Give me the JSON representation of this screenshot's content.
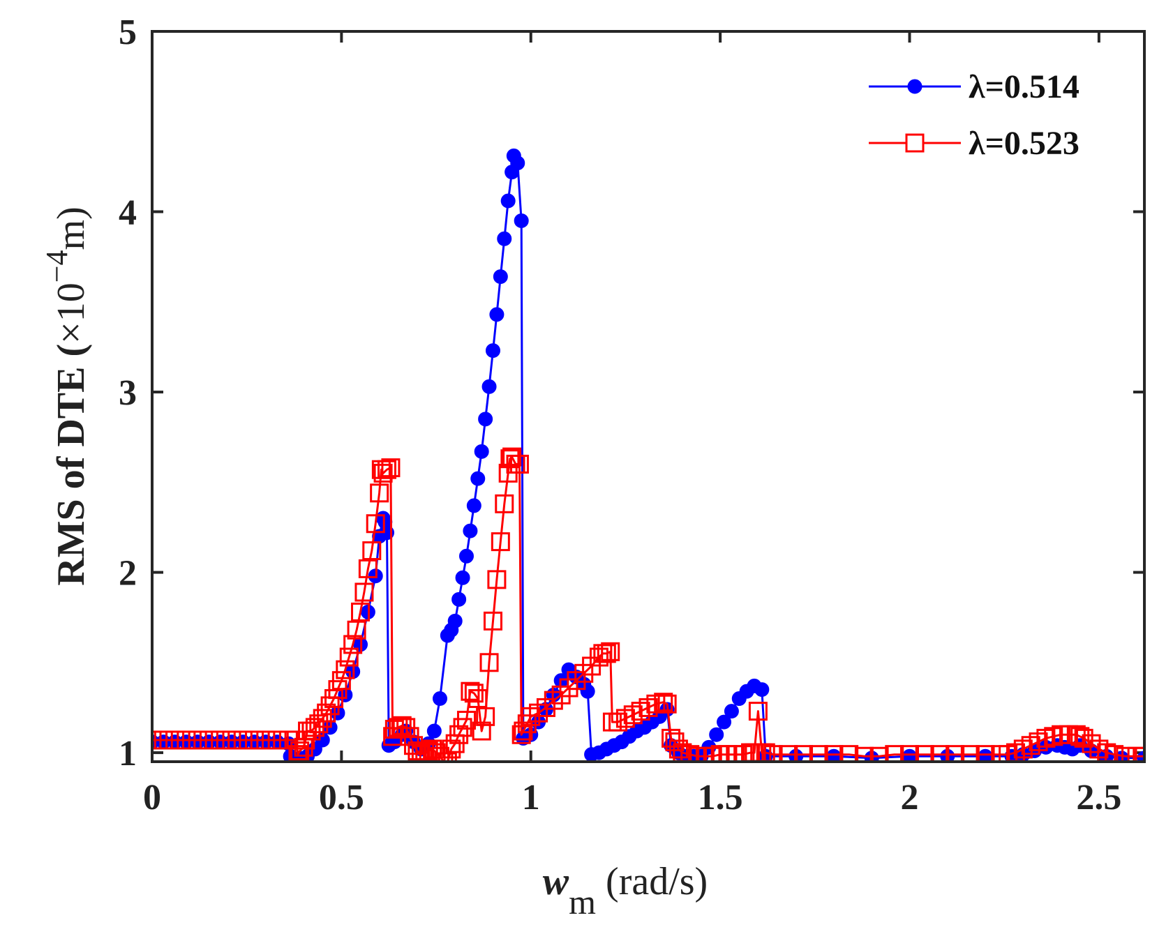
{
  "chart_data": {
    "type": "line",
    "title": "",
    "xlabel": {
      "symbol": "w",
      "subscript": "m",
      "unit": " (rad/s)"
    },
    "ylabel": {
      "main": "RMS of DTE (",
      "times": "×",
      "base": "10",
      "exponent": "−4",
      "unit": "m)"
    },
    "xlim": [
      0,
      2.62
    ],
    "ylim": [
      0.95,
      5
    ],
    "xticks": [
      0,
      0.5,
      1,
      1.5,
      2,
      2.5
    ],
    "xtick_labels": [
      "0",
      "0.5",
      "1",
      "1.5",
      "2",
      "2.5"
    ],
    "yticks": [
      1,
      2,
      3,
      4,
      5
    ],
    "ytick_labels": [
      "1",
      "2",
      "3",
      "4",
      "5"
    ],
    "grid": false,
    "legend_position": "top-right",
    "series": [
      {
        "name": "λ=0.514",
        "color": "#0000ff",
        "marker": "filled-circle",
        "points": [
          [
            0.0,
            1.06
          ],
          [
            0.03,
            1.06
          ],
          [
            0.06,
            1.06
          ],
          [
            0.09,
            1.06
          ],
          [
            0.12,
            1.06
          ],
          [
            0.15,
            1.06
          ],
          [
            0.18,
            1.06
          ],
          [
            0.21,
            1.06
          ],
          [
            0.24,
            1.06
          ],
          [
            0.27,
            1.06
          ],
          [
            0.3,
            1.06
          ],
          [
            0.33,
            1.06
          ],
          [
            0.36,
            1.05
          ],
          [
            0.365,
            0.98
          ],
          [
            0.39,
            0.97
          ],
          [
            0.41,
            0.98
          ],
          [
            0.43,
            1.02
          ],
          [
            0.45,
            1.07
          ],
          [
            0.47,
            1.14
          ],
          [
            0.49,
            1.22
          ],
          [
            0.51,
            1.32
          ],
          [
            0.53,
            1.45
          ],
          [
            0.55,
            1.6
          ],
          [
            0.57,
            1.78
          ],
          [
            0.59,
            1.98
          ],
          [
            0.6,
            2.2
          ],
          [
            0.61,
            2.3
          ],
          [
            0.615,
            2.28
          ],
          [
            0.62,
            2.22
          ],
          [
            0.625,
            1.04
          ],
          [
            0.64,
            1.06
          ],
          [
            0.66,
            1.1
          ],
          [
            0.67,
            1.12
          ],
          [
            0.69,
            1.06
          ],
          [
            0.71,
            1.02
          ],
          [
            0.73,
            1.05
          ],
          [
            0.745,
            1.12
          ],
          [
            0.76,
            1.3
          ],
          [
            0.78,
            1.65
          ],
          [
            0.79,
            1.68
          ],
          [
            0.8,
            1.73
          ],
          [
            0.81,
            1.85
          ],
          [
            0.82,
            1.97
          ],
          [
            0.83,
            2.09
          ],
          [
            0.84,
            2.23
          ],
          [
            0.85,
            2.37
          ],
          [
            0.86,
            2.52
          ],
          [
            0.87,
            2.67
          ],
          [
            0.88,
            2.85
          ],
          [
            0.89,
            3.03
          ],
          [
            0.9,
            3.23
          ],
          [
            0.91,
            3.43
          ],
          [
            0.92,
            3.64
          ],
          [
            0.93,
            3.85
          ],
          [
            0.94,
            4.06
          ],
          [
            0.95,
            4.22
          ],
          [
            0.955,
            4.31
          ],
          [
            0.965,
            4.27
          ],
          [
            0.975,
            3.95
          ],
          [
            0.98,
            1.08
          ],
          [
            1.0,
            1.1
          ],
          [
            1.02,
            1.17
          ],
          [
            1.04,
            1.24
          ],
          [
            1.06,
            1.32
          ],
          [
            1.08,
            1.4
          ],
          [
            1.1,
            1.46
          ],
          [
            1.12,
            1.42
          ],
          [
            1.14,
            1.38
          ],
          [
            1.15,
            1.34
          ],
          [
            1.16,
            0.99
          ],
          [
            1.18,
            1.0
          ],
          [
            1.2,
            1.02
          ],
          [
            1.22,
            1.04
          ],
          [
            1.24,
            1.06
          ],
          [
            1.26,
            1.09
          ],
          [
            1.28,
            1.12
          ],
          [
            1.3,
            1.14
          ],
          [
            1.32,
            1.17
          ],
          [
            1.34,
            1.2
          ],
          [
            1.36,
            1.24
          ],
          [
            1.37,
            1.04
          ],
          [
            1.39,
            1.0
          ],
          [
            1.41,
            0.98
          ],
          [
            1.43,
            0.98
          ],
          [
            1.45,
            0.98
          ],
          [
            1.47,
            1.03
          ],
          [
            1.49,
            1.1
          ],
          [
            1.51,
            1.17
          ],
          [
            1.53,
            1.23
          ],
          [
            1.55,
            1.3
          ],
          [
            1.57,
            1.34
          ],
          [
            1.59,
            1.37
          ],
          [
            1.61,
            1.35
          ],
          [
            1.62,
            0.98
          ],
          [
            1.7,
            0.98
          ],
          [
            1.8,
            0.98
          ],
          [
            1.9,
            0.97
          ],
          [
            2.0,
            0.98
          ],
          [
            2.1,
            0.98
          ],
          [
            2.2,
            0.98
          ],
          [
            2.27,
            0.98
          ],
          [
            2.3,
            0.99
          ],
          [
            2.33,
            1.01
          ],
          [
            2.36,
            1.03
          ],
          [
            2.39,
            1.04
          ],
          [
            2.41,
            1.03
          ],
          [
            2.43,
            1.02
          ],
          [
            2.45,
            1.04
          ],
          [
            2.48,
            1.01
          ],
          [
            2.52,
            0.98
          ],
          [
            2.56,
            0.97
          ],
          [
            2.62,
            0.97
          ]
        ]
      },
      {
        "name": "λ=0.523",
        "color": "#ff0000",
        "marker": "open-square",
        "points": [
          [
            0.0,
            1.07
          ],
          [
            0.03,
            1.07
          ],
          [
            0.06,
            1.07
          ],
          [
            0.09,
            1.07
          ],
          [
            0.12,
            1.07
          ],
          [
            0.15,
            1.07
          ],
          [
            0.18,
            1.07
          ],
          [
            0.21,
            1.07
          ],
          [
            0.24,
            1.07
          ],
          [
            0.27,
            1.07
          ],
          [
            0.3,
            1.07
          ],
          [
            0.33,
            1.07
          ],
          [
            0.36,
            1.07
          ],
          [
            0.38,
            1.07
          ],
          [
            0.385,
            0.99
          ],
          [
            0.39,
            1.01
          ],
          [
            0.4,
            1.03
          ],
          [
            0.405,
            1.07
          ],
          [
            0.41,
            1.12
          ],
          [
            0.42,
            1.12
          ],
          [
            0.43,
            1.14
          ],
          [
            0.44,
            1.16
          ],
          [
            0.45,
            1.19
          ],
          [
            0.46,
            1.22
          ],
          [
            0.47,
            1.26
          ],
          [
            0.48,
            1.3
          ],
          [
            0.49,
            1.35
          ],
          [
            0.5,
            1.4
          ],
          [
            0.51,
            1.46
          ],
          [
            0.52,
            1.53
          ],
          [
            0.53,
            1.6
          ],
          [
            0.54,
            1.68
          ],
          [
            0.55,
            1.78
          ],
          [
            0.56,
            1.89
          ],
          [
            0.57,
            2.02
          ],
          [
            0.58,
            2.12
          ],
          [
            0.59,
            2.27
          ],
          [
            0.6,
            2.44
          ],
          [
            0.605,
            2.57
          ],
          [
            0.61,
            2.55
          ],
          [
            0.62,
            2.57
          ],
          [
            0.63,
            2.58
          ],
          [
            0.635,
            1.09
          ],
          [
            0.64,
            1.13
          ],
          [
            0.65,
            1.14
          ],
          [
            0.66,
            1.15
          ],
          [
            0.67,
            1.14
          ],
          [
            0.68,
            1.09
          ],
          [
            0.69,
            1.04
          ],
          [
            0.7,
            1.01
          ],
          [
            0.71,
            0.99
          ],
          [
            0.72,
            1.0
          ],
          [
            0.73,
            1.01
          ],
          [
            0.74,
            1.02
          ],
          [
            0.75,
            1.0
          ],
          [
            0.76,
            0.98
          ],
          [
            0.77,
            0.95
          ],
          [
            0.78,
            0.95
          ],
          [
            0.79,
            1.02
          ],
          [
            0.8,
            1.05
          ],
          [
            0.81,
            1.1
          ],
          [
            0.82,
            1.14
          ],
          [
            0.83,
            1.18
          ],
          [
            0.84,
            1.34
          ],
          [
            0.85,
            1.33
          ],
          [
            0.86,
            1.3
          ],
          [
            0.87,
            1.12
          ],
          [
            0.88,
            1.2
          ],
          [
            0.89,
            1.5
          ],
          [
            0.9,
            1.73
          ],
          [
            0.91,
            1.96
          ],
          [
            0.92,
            2.17
          ],
          [
            0.93,
            2.38
          ],
          [
            0.94,
            2.55
          ],
          [
            0.945,
            2.63
          ],
          [
            0.95,
            2.64
          ],
          [
            0.96,
            2.6
          ],
          [
            0.97,
            2.6
          ],
          [
            0.975,
            1.1
          ],
          [
            0.98,
            1.12
          ],
          [
            0.99,
            1.16
          ],
          [
            1.0,
            1.2
          ],
          [
            1.02,
            1.22
          ],
          [
            1.04,
            1.25
          ],
          [
            1.06,
            1.29
          ],
          [
            1.08,
            1.32
          ],
          [
            1.1,
            1.36
          ],
          [
            1.12,
            1.4
          ],
          [
            1.14,
            1.44
          ],
          [
            1.16,
            1.48
          ],
          [
            1.18,
            1.53
          ],
          [
            1.19,
            1.55
          ],
          [
            1.2,
            1.55
          ],
          [
            1.21,
            1.56
          ],
          [
            1.215,
            1.17
          ],
          [
            1.23,
            1.17
          ],
          [
            1.25,
            1.19
          ],
          [
            1.27,
            1.21
          ],
          [
            1.29,
            1.23
          ],
          [
            1.31,
            1.25
          ],
          [
            1.33,
            1.27
          ],
          [
            1.35,
            1.28
          ],
          [
            1.36,
            1.27
          ],
          [
            1.37,
            1.08
          ],
          [
            1.38,
            1.06
          ],
          [
            1.39,
            1.02
          ],
          [
            1.4,
            1.0
          ],
          [
            1.42,
            0.99
          ],
          [
            1.44,
            0.98
          ],
          [
            1.46,
            0.98
          ],
          [
            1.48,
            0.98
          ],
          [
            1.5,
            0.99
          ],
          [
            1.52,
            0.99
          ],
          [
            1.54,
            0.99
          ],
          [
            1.56,
            0.99
          ],
          [
            1.58,
            1.0
          ],
          [
            1.59,
            1.0
          ],
          [
            1.6,
            1.23
          ],
          [
            1.61,
            1.0
          ],
          [
            1.62,
            1.0
          ],
          [
            1.64,
            0.99
          ],
          [
            1.68,
            0.99
          ],
          [
            1.72,
            0.99
          ],
          [
            1.76,
            0.99
          ],
          [
            1.8,
            0.99
          ],
          [
            1.84,
            0.99
          ],
          [
            1.88,
            0.98
          ],
          [
            1.92,
            0.98
          ],
          [
            1.96,
            0.99
          ],
          [
            2.0,
            0.99
          ],
          [
            2.04,
            0.99
          ],
          [
            2.08,
            0.99
          ],
          [
            2.12,
            0.99
          ],
          [
            2.16,
            0.99
          ],
          [
            2.2,
            0.99
          ],
          [
            2.24,
            0.99
          ],
          [
            2.26,
            0.99
          ],
          [
            2.28,
            1.0
          ],
          [
            2.3,
            1.02
          ],
          [
            2.32,
            1.04
          ],
          [
            2.34,
            1.06
          ],
          [
            2.36,
            1.08
          ],
          [
            2.38,
            1.09
          ],
          [
            2.4,
            1.1
          ],
          [
            2.42,
            1.1
          ],
          [
            2.44,
            1.1
          ],
          [
            2.45,
            1.09
          ],
          [
            2.46,
            1.08
          ],
          [
            2.48,
            1.05
          ],
          [
            2.5,
            1.02
          ],
          [
            2.52,
            1.0
          ],
          [
            2.54,
            0.99
          ],
          [
            2.57,
            0.98
          ],
          [
            2.6,
            0.98
          ],
          [
            2.62,
            0.98
          ]
        ]
      }
    ]
  }
}
